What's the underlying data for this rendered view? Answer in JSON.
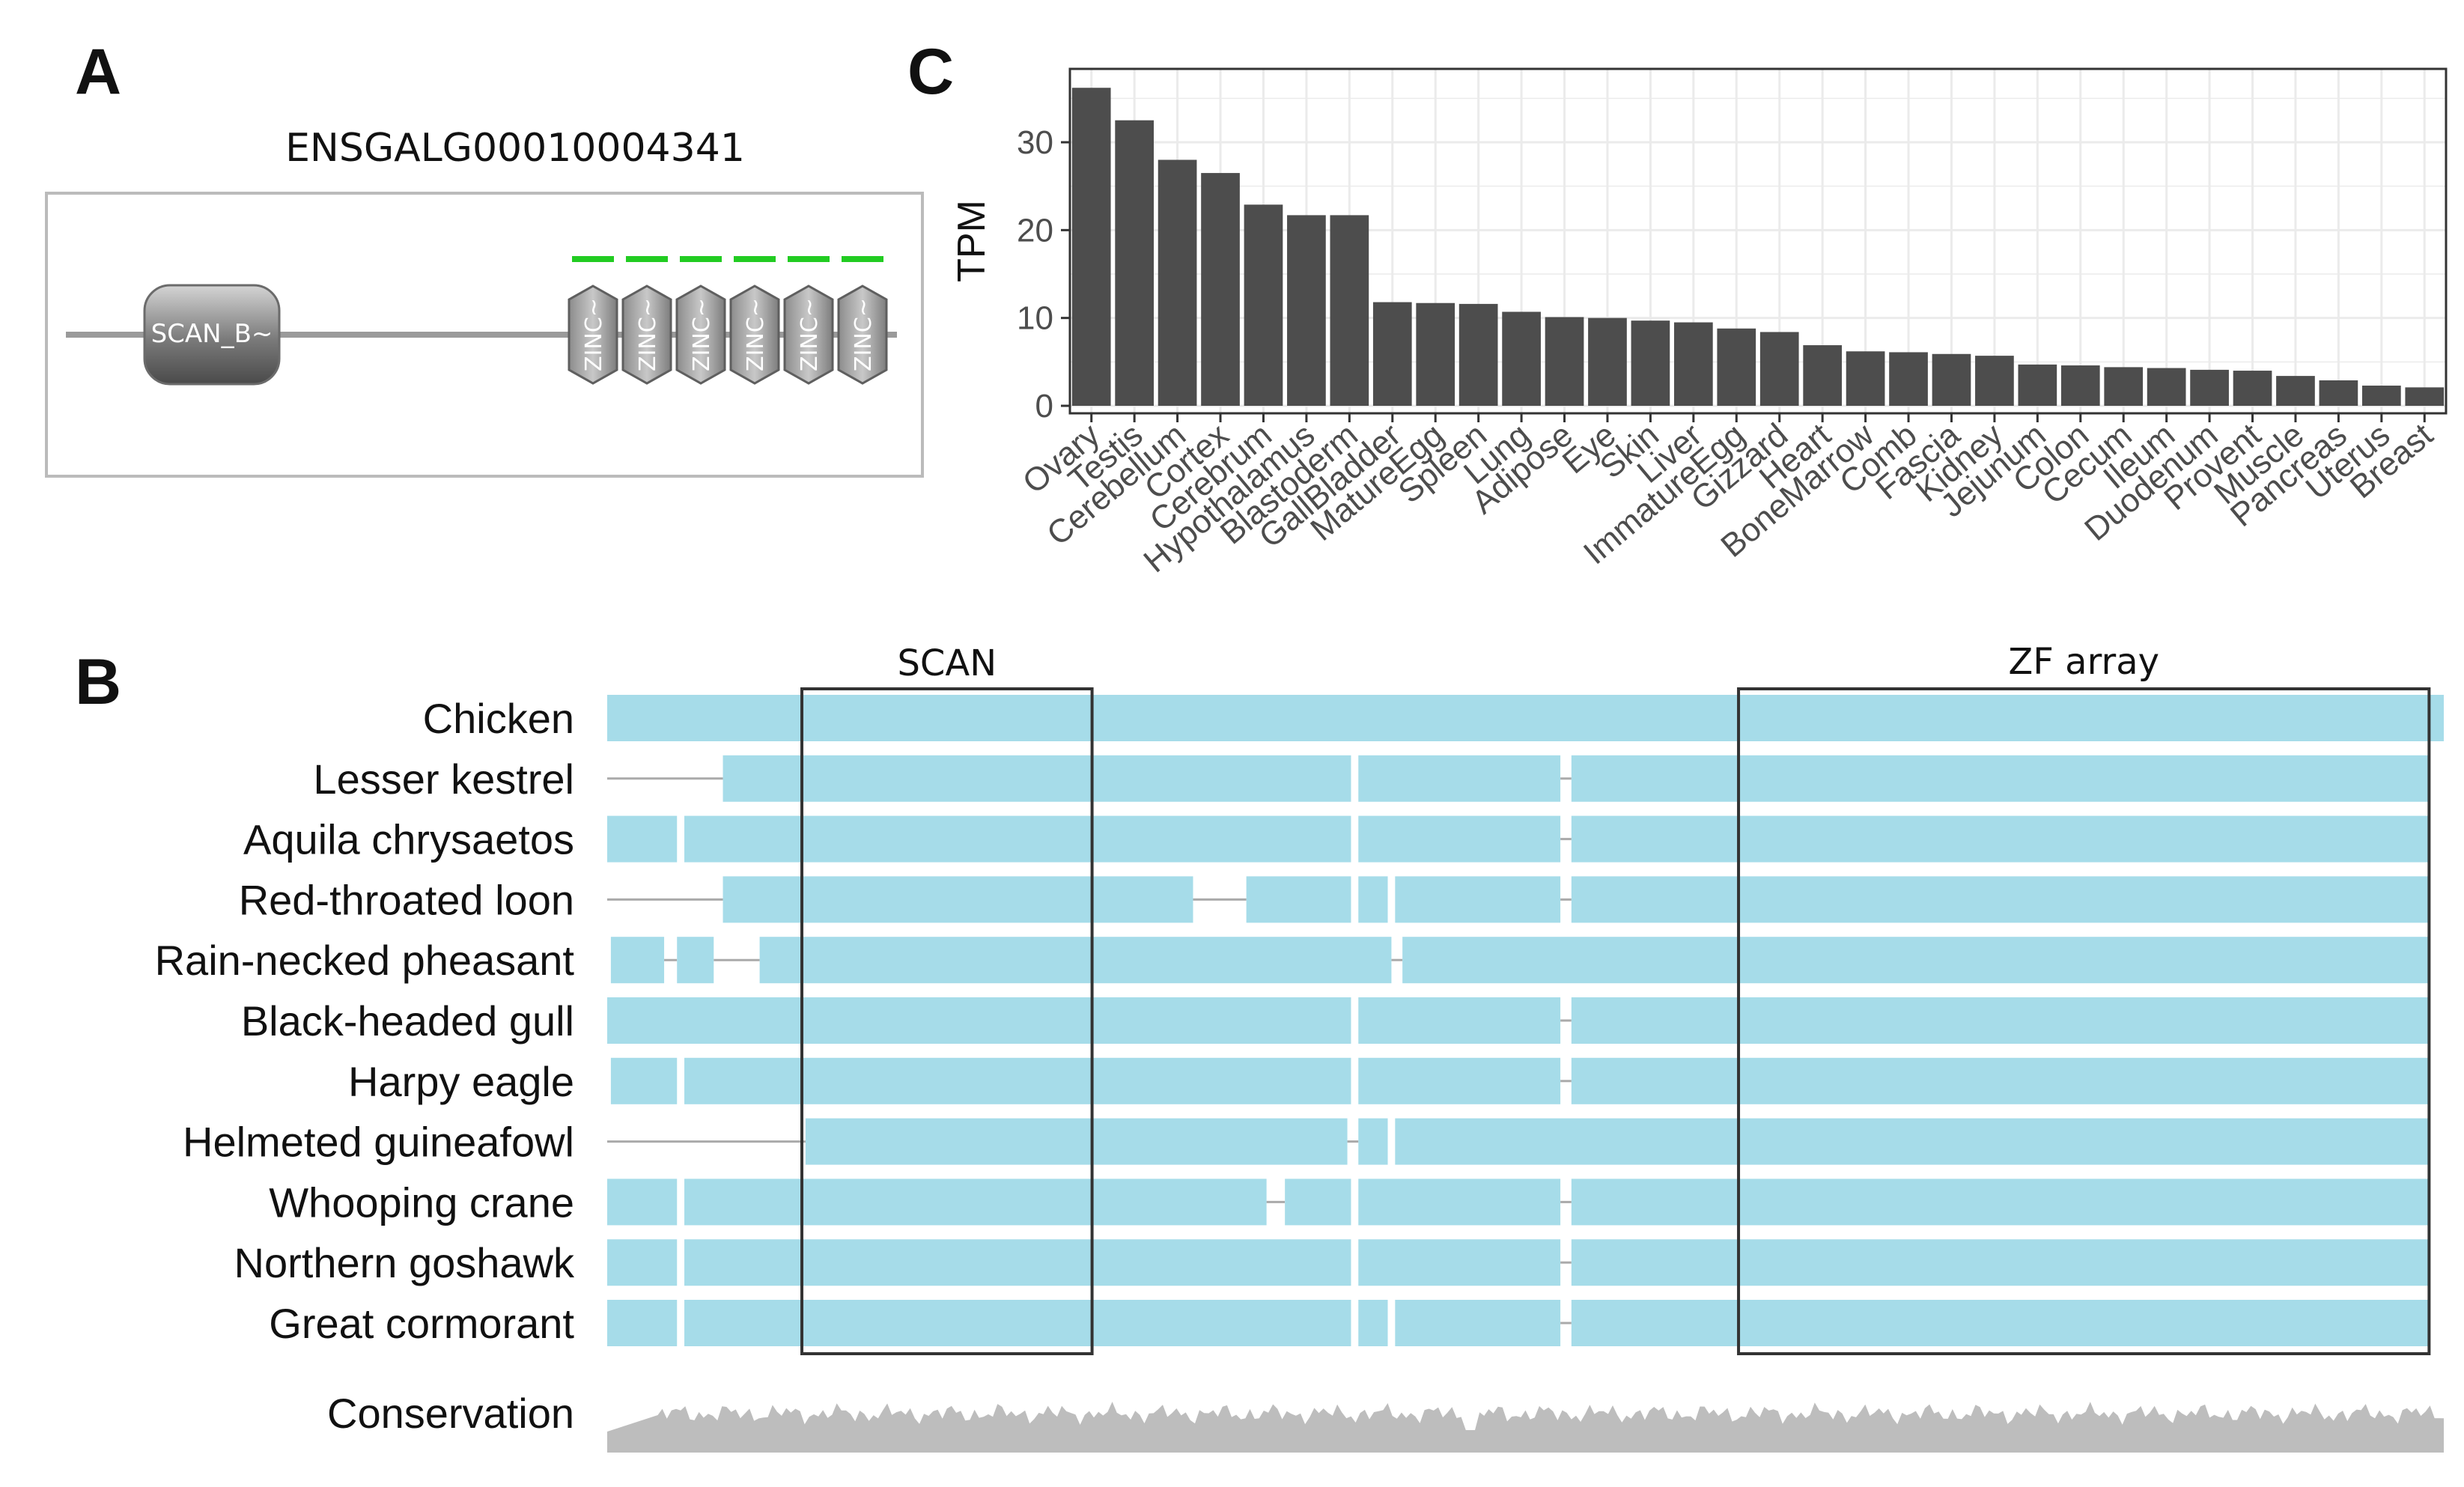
{
  "panels": {
    "a": "A",
    "b": "B",
    "c": "C"
  },
  "panel_a": {
    "gene_id": "ENSGALG00010004341",
    "domain_label": "SCAN_B~",
    "zinc_label": "ZINC~",
    "zinc_count": 6,
    "colors": {
      "green": "#22cc22",
      "line": "#9a9a9a",
      "border": "#bbbbbb"
    }
  },
  "chart_data": {
    "type": "bar",
    "title": "",
    "xlabel": "",
    "ylabel": "TPM",
    "ylim": [
      0,
      37.5
    ],
    "yticks": [
      0,
      10,
      20,
      30
    ],
    "grid": true,
    "bar_color": "#4d4d4d",
    "categories": [
      "Ovary",
      "Testis",
      "Cerebellum",
      "Cortex",
      "Cerebrum",
      "Hypothalamus",
      "Blastoderm",
      "GallBladder",
      "MatureEgg",
      "Spleen",
      "Lung",
      "Adipose",
      "Eye",
      "Skin",
      "Liver",
      "ImmatureEgg",
      "Gizzard",
      "Heart",
      "BoneMarrow",
      "Comb",
      "Fascia",
      "Kidney",
      "Jejunum",
      "Colon",
      "Cecum",
      "Ileum",
      "Duodenum",
      "Provent",
      "Muscle",
      "Pancreas",
      "Uterus",
      "Breast"
    ],
    "values": [
      36.2,
      32.5,
      28.0,
      26.5,
      22.9,
      21.7,
      21.7,
      11.8,
      11.7,
      11.6,
      10.7,
      10.1,
      10.0,
      9.7,
      9.5,
      8.8,
      8.4,
      6.9,
      6.2,
      6.1,
      5.9,
      5.7,
      4.7,
      4.6,
      4.4,
      4.3,
      4.1,
      4.0,
      3.4,
      2.9,
      2.3,
      2.1
    ]
  },
  "panel_b": {
    "box_labels": {
      "scan": "SCAN",
      "zf": "ZF array"
    },
    "conservation_label": "Conservation",
    "colors": {
      "block": "#a6dce9",
      "gap": "#aaaaaa",
      "conservation": "#bdbdbd",
      "box": "#333333"
    },
    "alignment_length": 100,
    "scan_region": [
      10.6,
      26.4
    ],
    "zf_region": [
      61.6,
      99.2
    ],
    "species": [
      {
        "name": "Chicken",
        "blocks": [
          [
            0,
            100
          ]
        ]
      },
      {
        "name": "Lesser kestrel",
        "blocks": [
          [
            6.3,
            40.5
          ],
          [
            40.9,
            51.9
          ],
          [
            52.5,
            99.2
          ]
        ]
      },
      {
        "name": "Aquila chrysaetos",
        "blocks": [
          [
            0,
            3.8
          ],
          [
            4.2,
            40.5
          ],
          [
            40.9,
            51.9
          ],
          [
            52.5,
            99.2
          ]
        ]
      },
      {
        "name": "Red-throated loon",
        "blocks": [
          [
            6.3,
            31.9
          ],
          [
            34.8,
            40.5
          ],
          [
            40.9,
            42.5
          ],
          [
            42.9,
            51.9
          ],
          [
            52.5,
            99.2
          ]
        ]
      },
      {
        "name": "Rain-necked pheasant",
        "blocks": [
          [
            0.2,
            3.1
          ],
          [
            3.8,
            5.8
          ],
          [
            8.3,
            42.7
          ],
          [
            43.3,
            99.2
          ]
        ]
      },
      {
        "name": "Black-headed gull",
        "blocks": [
          [
            0,
            40.5
          ],
          [
            40.9,
            51.9
          ],
          [
            52.5,
            99.2
          ]
        ]
      },
      {
        "name": "Harpy eagle",
        "blocks": [
          [
            0.2,
            3.8
          ],
          [
            4.2,
            40.5
          ],
          [
            40.9,
            51.9
          ],
          [
            52.5,
            99.2
          ]
        ]
      },
      {
        "name": "Helmeted guineafowl",
        "blocks": [
          [
            10.8,
            40.3
          ],
          [
            40.9,
            42.5
          ],
          [
            42.9,
            99.2
          ]
        ]
      },
      {
        "name": "Whooping crane",
        "blocks": [
          [
            0,
            3.8
          ],
          [
            4.2,
            35.9
          ],
          [
            36.9,
            40.5
          ],
          [
            40.9,
            51.9
          ],
          [
            52.5,
            99.2
          ]
        ]
      },
      {
        "name": "Northern goshawk",
        "blocks": [
          [
            0,
            3.8
          ],
          [
            4.2,
            40.5
          ],
          [
            40.9,
            51.9
          ],
          [
            52.5,
            99.2
          ]
        ]
      },
      {
        "name": "Great cormorant",
        "blocks": [
          [
            0,
            3.8
          ],
          [
            4.2,
            40.5
          ],
          [
            40.9,
            42.5
          ],
          [
            42.9,
            51.9
          ],
          [
            52.5,
            99.2
          ]
        ]
      }
    ]
  }
}
